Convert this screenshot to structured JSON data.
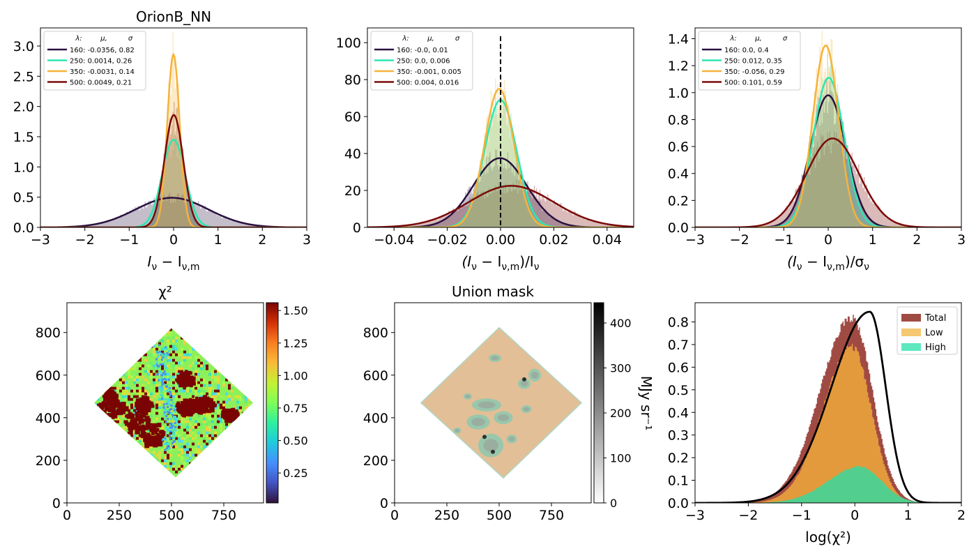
{
  "chart_data": [
    {
      "type": "histogram",
      "title": "OrionB_NN",
      "xlabel_parts": [
        "I",
        "ν",
        " − I",
        "ν,m"
      ],
      "xlim": [
        -3,
        3
      ],
      "ylim": [
        0,
        3.3
      ],
      "xticks": [
        "−3",
        "−2",
        "−1",
        "0",
        "1",
        "2",
        "3"
      ],
      "yticks": [
        "0.0",
        "0.5",
        "1.0",
        "1.5",
        "2.0",
        "2.5",
        "3.0"
      ],
      "legend_header": [
        "λ:",
        "μ,",
        "σ"
      ],
      "series": [
        {
          "name": "160: -0.0356,  0.82",
          "color": "#2a1140",
          "mu": -0.0356,
          "sigma": 0.82,
          "peak": 0.49
        },
        {
          "name": "250: 0.0014,  0.26",
          "color": "#2ee6b0",
          "mu": 0.0014,
          "sigma": 0.26,
          "peak": 1.45
        },
        {
          "name": "350: -0.0031,  0.14",
          "color": "#f6b33a",
          "mu": -0.0031,
          "sigma": 0.14,
          "peak": 2.86
        },
        {
          "name": "500: 0.0049,  0.21",
          "color": "#7a0a08",
          "mu": 0.0049,
          "sigma": 0.21,
          "peak": 1.86
        }
      ]
    },
    {
      "type": "histogram",
      "title": "",
      "xlabel_parts": [
        "(I",
        "ν",
        " − I",
        "ν,m",
        ")/I",
        "ν"
      ],
      "xlim": [
        -0.05,
        0.05
      ],
      "ylim": [
        0,
        108
      ],
      "xticks": [
        "−0.04",
        "−0.02",
        "0.00",
        "0.02",
        "0.04"
      ],
      "xtick_values": [
        -0.04,
        -0.02,
        0,
        0.02,
        0.04
      ],
      "yticks": [
        "0",
        "20",
        "40",
        "60",
        "80",
        "100"
      ],
      "vline_x": 0,
      "legend_header": [
        "λ:",
        "μ,",
        "σ"
      ],
      "series": [
        {
          "name": "160: -0.0,  0.01",
          "color": "#2a1140",
          "mu": -0.0002,
          "sigma": 0.01,
          "peak": 37.5
        },
        {
          "name": "250: 0.0,  0.006",
          "color": "#2ee6b0",
          "mu": 0.0,
          "sigma": 0.006,
          "peak": 69
        },
        {
          "name": "350: -0.001,  0.005",
          "color": "#f6b33a",
          "mu": -0.0005,
          "sigma": 0.0055,
          "peak": 75
        },
        {
          "name": "500: 0.004,  0.016",
          "color": "#7a0a08",
          "mu": 0.004,
          "sigma": 0.016,
          "peak": 22.5
        }
      ]
    },
    {
      "type": "histogram",
      "title": "",
      "xlabel_parts": [
        "(I",
        "ν",
        " − I",
        "ν,m",
        ")/σ",
        "ν"
      ],
      "xlim": [
        -3,
        3
      ],
      "ylim": [
        0,
        1.48
      ],
      "xticks": [
        "−3",
        "−2",
        "−1",
        "0",
        "1",
        "2",
        "3"
      ],
      "yticks": [
        "0.0",
        "0.2",
        "0.4",
        "0.6",
        "0.8",
        "1.0",
        "1.2",
        "1.4"
      ],
      "legend_header": [
        "λ:",
        "μ,",
        "σ"
      ],
      "series": [
        {
          "name": "160: 0.0,  0.4",
          "color": "#2a1140",
          "mu": 0.0,
          "sigma": 0.4,
          "peak": 0.98
        },
        {
          "name": "250: 0.012,  0.35",
          "color": "#2ee6b0",
          "mu": 0.012,
          "sigma": 0.35,
          "peak": 1.11
        },
        {
          "name": "350: -0.056,  0.29",
          "color": "#f6b33a",
          "mu": -0.056,
          "sigma": 0.29,
          "peak": 1.35
        },
        {
          "name": "500: 0.101,  0.59",
          "color": "#7a0a08",
          "mu": 0.101,
          "sigma": 0.59,
          "peak": 0.66
        }
      ]
    },
    {
      "type": "heatmap",
      "title": "χ²",
      "xlim": [
        0,
        940
      ],
      "ylim": [
        0,
        940
      ],
      "xticks": [
        "0",
        "250",
        "500",
        "750"
      ],
      "xtick_values": [
        0,
        250,
        500,
        750
      ],
      "yticks": [
        "0",
        "200",
        "400",
        "600",
        "800"
      ],
      "ytick_values": [
        0,
        200,
        400,
        600,
        800
      ],
      "colorbar_ticks": [
        "0.25",
        "0.50",
        "0.75",
        "1.00",
        "1.25",
        "1.50"
      ],
      "colorbar_values": [
        0.25,
        0.5,
        0.75,
        1.0,
        1.25,
        1.5
      ],
      "colorbar_range": [
        0.02,
        1.56
      ],
      "colormap": "turbo",
      "diamond_vertices": [
        [
          500,
          820
        ],
        [
          890,
          470
        ],
        [
          520,
          120
        ],
        [
          130,
          470
        ]
      ]
    },
    {
      "type": "heatmap",
      "title": "Union mask",
      "xlim": [
        0,
        940
      ],
      "ylim": [
        0,
        940
      ],
      "xticks": [
        "0",
        "250",
        "500",
        "750"
      ],
      "xtick_values": [
        0,
        250,
        500,
        750
      ],
      "yticks": [
        "0",
        "200",
        "400",
        "600",
        "800"
      ],
      "ytick_values": [
        0,
        200,
        400,
        600,
        800
      ],
      "colorbar_ticks": [
        "0",
        "100",
        "200",
        "300",
        "400"
      ],
      "colorbar_values": [
        0,
        100,
        200,
        300,
        400
      ],
      "colorbar_range": [
        0,
        445
      ],
      "colorbar_label": "MJy sr⁻¹",
      "colormap": "gray_r",
      "fill_color": "#e2bf96",
      "mask_color": "#8cc8b0",
      "diamond_vertices": [
        [
          500,
          820
        ],
        [
          890,
          470
        ],
        [
          520,
          120
        ],
        [
          130,
          470
        ]
      ]
    },
    {
      "type": "histogram",
      "title": "",
      "xlabel": "log(χ²)",
      "xlim": [
        -3,
        2
      ],
      "ylim": [
        0,
        0.885
      ],
      "xticks": [
        "−3",
        "−2",
        "−1",
        "0",
        "1",
        "2"
      ],
      "yticks": [
        "0.0",
        "0.1",
        "0.2",
        "0.3",
        "0.4",
        "0.5",
        "0.6",
        "0.7",
        "0.8"
      ],
      "legend": "upper right",
      "series": [
        {
          "name": "Total",
          "color": "#a04a44",
          "mu": -0.05,
          "sigma_left": 0.6,
          "sigma_right": 0.38,
          "peak": 0.82
        },
        {
          "name": "Low",
          "color": "#f0c060",
          "mu": -0.05,
          "sigma_left": 0.55,
          "sigma_right": 0.36,
          "peak": 0.69
        },
        {
          "name": "High",
          "color": "#40e0b0",
          "mu": 0.1,
          "sigma_left": 0.6,
          "sigma_right": 0.4,
          "peak": 0.16
        }
      ],
      "reference_curve": {
        "color": "#000000",
        "mu": 0.28,
        "sigma_left": 0.72,
        "sigma_right": 0.3,
        "peak": 0.845
      }
    }
  ]
}
